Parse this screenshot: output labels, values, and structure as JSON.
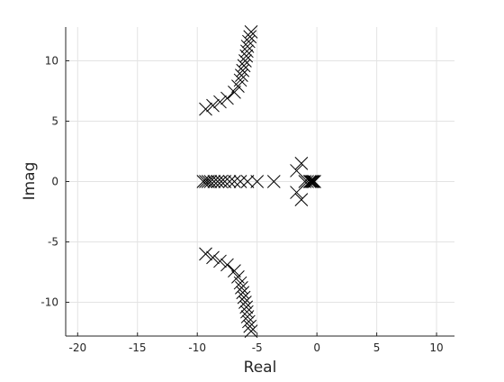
{
  "chart_data": {
    "type": "scatter",
    "title": "",
    "xlabel": "Real",
    "ylabel": "Imag",
    "xlim": [
      -21,
      11.5
    ],
    "ylim": [
      -12.8,
      12.8
    ],
    "xticks": [
      -20,
      -15,
      -10,
      -5,
      0,
      5,
      10
    ],
    "yticks": [
      -10,
      -5,
      0,
      5,
      10
    ],
    "xtick_labels": [
      "-20",
      "-15",
      "-10",
      "-5",
      "0",
      "5",
      "10"
    ],
    "ytick_labels": [
      "-10",
      "-5",
      "0",
      "5",
      "10"
    ],
    "grid": true,
    "marker": "x",
    "series": [
      {
        "points": [
          [
            -9.3,
            6.0
          ],
          [
            -8.7,
            6.3
          ],
          [
            -8.1,
            6.6
          ],
          [
            -7.5,
            6.9
          ],
          [
            -6.9,
            7.4
          ],
          [
            -6.6,
            7.9
          ],
          [
            -6.4,
            8.4
          ],
          [
            -6.3,
            8.8
          ],
          [
            -6.2,
            9.2
          ],
          [
            -6.1,
            9.6
          ],
          [
            -6.0,
            10.0
          ],
          [
            -5.9,
            10.4
          ],
          [
            -5.85,
            10.8
          ],
          [
            -5.8,
            11.2
          ],
          [
            -5.7,
            11.6
          ],
          [
            -5.6,
            12.0
          ],
          [
            -5.5,
            12.4
          ],
          [
            -9.3,
            -6.0
          ],
          [
            -8.7,
            -6.3
          ],
          [
            -8.1,
            -6.6
          ],
          [
            -7.5,
            -6.9
          ],
          [
            -6.9,
            -7.4
          ],
          [
            -6.6,
            -7.9
          ],
          [
            -6.4,
            -8.4
          ],
          [
            -6.3,
            -8.8
          ],
          [
            -6.2,
            -9.2
          ],
          [
            -6.1,
            -9.6
          ],
          [
            -6.0,
            -10.0
          ],
          [
            -5.9,
            -10.4
          ],
          [
            -5.85,
            -10.8
          ],
          [
            -5.8,
            -11.2
          ],
          [
            -5.7,
            -11.6
          ],
          [
            -5.6,
            -12.0
          ],
          [
            -5.5,
            -12.4
          ],
          [
            -9.5,
            0
          ],
          [
            -9.3,
            0
          ],
          [
            -9.1,
            0
          ],
          [
            -8.9,
            0
          ],
          [
            -8.6,
            0
          ],
          [
            -8.3,
            0
          ],
          [
            -8.0,
            0
          ],
          [
            -7.7,
            0
          ],
          [
            -7.3,
            0
          ],
          [
            -6.9,
            0
          ],
          [
            -6.4,
            0
          ],
          [
            -5.8,
            0
          ],
          [
            -5.0,
            0
          ],
          [
            -3.6,
            0
          ],
          [
            -1.7,
            0.9
          ],
          [
            -1.3,
            1.5
          ],
          [
            -1.7,
            -0.9
          ],
          [
            -1.3,
            -1.5
          ],
          [
            -1.0,
            0
          ],
          [
            -0.8,
            0
          ],
          [
            -0.6,
            0
          ],
          [
            -0.5,
            0
          ],
          [
            -0.4,
            0
          ],
          [
            -0.3,
            0
          ],
          [
            -0.2,
            0
          ]
        ]
      }
    ]
  }
}
